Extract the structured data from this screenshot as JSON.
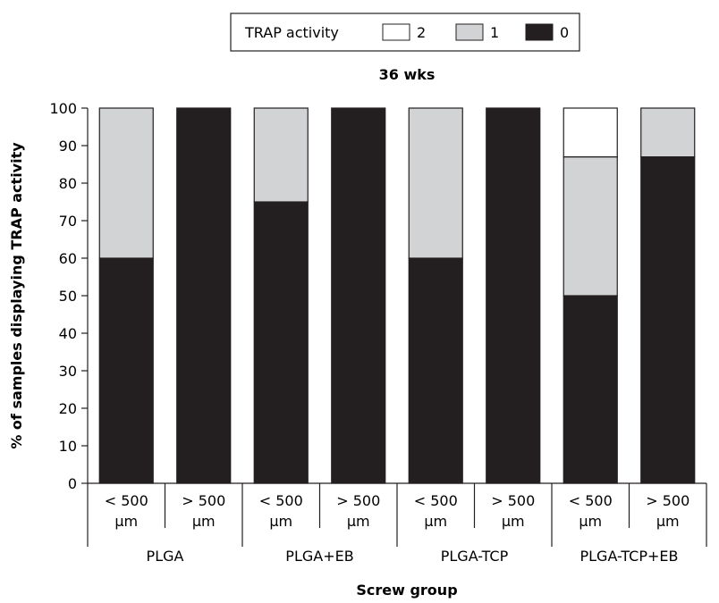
{
  "chart_data": {
    "type": "bar",
    "stacked": true,
    "title": "36 wks",
    "xlabel": "Screw group",
    "ylabel": "% of samples displaying TRAP activity",
    "ylim": [
      0,
      100
    ],
    "yticks": [
      0,
      10,
      20,
      30,
      40,
      50,
      60,
      70,
      80,
      90,
      100
    ],
    "grid": false,
    "legend": {
      "title": "TRAP activity",
      "placement": "top-center",
      "entries": [
        "2",
        "1",
        "0"
      ]
    },
    "groups": [
      "PLGA",
      "PLGA+EB",
      "PLGA-TCP",
      "PLGA-TCP+EB"
    ],
    "subcategories": [
      [
        "< 500",
        "µm"
      ],
      [
        "> 500",
        "µm"
      ],
      [
        "< 500",
        "µm"
      ],
      [
        "> 500",
        "µm"
      ],
      [
        "< 500",
        "µm"
      ],
      [
        "> 500",
        "µm"
      ],
      [
        "< 500",
        "µm"
      ],
      [
        "> 500",
        "µm"
      ]
    ],
    "series": [
      {
        "name": "0",
        "color": "#231f20",
        "values": [
          60,
          100,
          75,
          100,
          60,
          100,
          50,
          87
        ]
      },
      {
        "name": "1",
        "color": "#d1d3d4",
        "values": [
          40,
          0,
          25,
          0,
          40,
          0,
          37,
          13
        ]
      },
      {
        "name": "2",
        "color": "#ffffff",
        "values": [
          0,
          0,
          0,
          0,
          0,
          0,
          13,
          0
        ]
      }
    ]
  }
}
